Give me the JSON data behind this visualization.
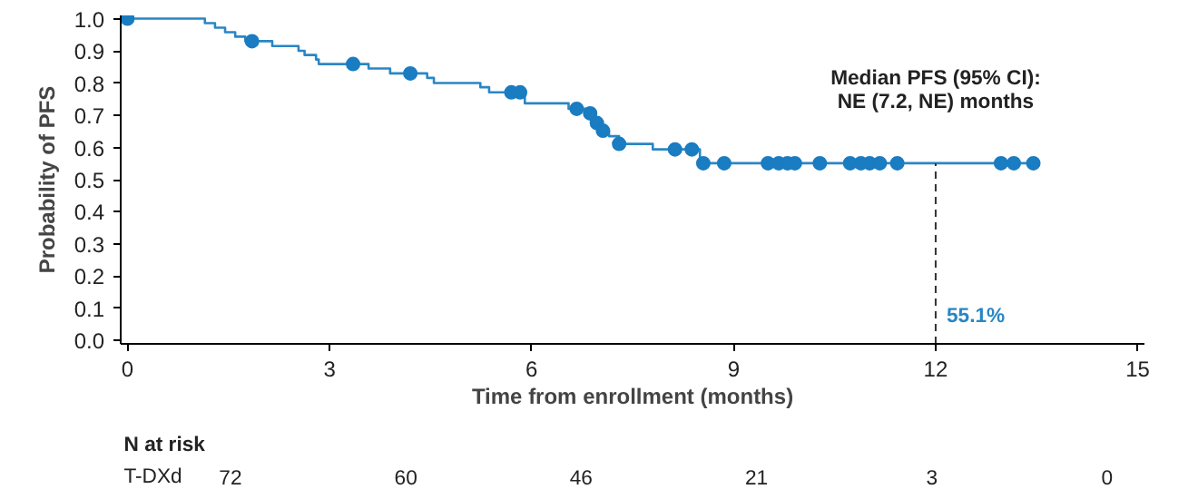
{
  "chart_data": {
    "type": "step",
    "xlabel": "Time from enrollment (months)",
    "ylabel": "Probability of PFS",
    "xlim": [
      -0.1,
      15.1
    ],
    "ylim": [
      -0.01,
      1.01
    ],
    "xticks": [
      0,
      3,
      6,
      9,
      12,
      15
    ],
    "yticks": [
      {
        "value": 0,
        "label": "0.0"
      },
      {
        "value": 0.1,
        "label": "0.1"
      },
      {
        "value": 0.2,
        "label": "0.2"
      },
      {
        "value": 0.3,
        "label": "0.3"
      },
      {
        "value": 0.4,
        "label": "0.4"
      },
      {
        "value": 0.5,
        "label": "0.5"
      },
      {
        "value": 0.6,
        "label": "0.6"
      },
      {
        "value": 0.7,
        "label": "0.7"
      },
      {
        "value": 0.8,
        "label": "0.8"
      },
      {
        "value": 0.9,
        "label": "0.9"
      },
      {
        "value": 1.0,
        "label": "1.0"
      }
    ],
    "grid": false,
    "line_style": "solid",
    "series": [
      {
        "color": "#2a86c4",
        "marker": "none",
        "x": [
          0,
          1.15,
          1.3,
          1.45,
          1.6,
          1.75,
          2.15,
          2.54,
          2.63,
          2.8,
          2.84,
          3.58,
          3.9,
          4.45,
          4.55,
          5.24,
          5.37,
          5.9,
          6.55,
          6.8,
          6.95,
          7.05,
          7.15,
          7.3,
          7.8,
          8.5,
          13.45
        ],
        "values": [
          1.0,
          0.986,
          0.972,
          0.958,
          0.944,
          0.93,
          0.915,
          0.9,
          0.887,
          0.873,
          0.859,
          0.845,
          0.83,
          0.816,
          0.8,
          0.787,
          0.771,
          0.737,
          0.72,
          0.706,
          0.676,
          0.652,
          0.635,
          0.611,
          0.594,
          0.551,
          0.551
        ]
      },
      {
        "type": "scatter",
        "color": "#1a7cc1",
        "marker": "circle",
        "x": [
          0,
          1.85,
          3.35,
          4.2,
          5.7,
          5.83,
          6.67,
          6.87,
          6.97,
          7.06,
          7.3,
          8.13,
          8.38,
          8.55,
          8.86,
          9.51,
          9.67,
          9.8,
          9.91,
          10.28,
          10.73,
          10.89,
          11.02,
          11.17,
          11.43,
          12.97,
          13.16,
          13.45
        ],
        "values": [
          1.0,
          0.93,
          0.859,
          0.83,
          0.771,
          0.771,
          0.72,
          0.706,
          0.676,
          0.652,
          0.611,
          0.594,
          0.594,
          0.551,
          0.551,
          0.551,
          0.551,
          0.551,
          0.551,
          0.551,
          0.551,
          0.551,
          0.551,
          0.551,
          0.551,
          0.551,
          0.551,
          0.551
        ]
      }
    ],
    "ref_lines": [
      {
        "axis": "x",
        "value": 12,
        "color": "#333333",
        "line_style": "dashed"
      }
    ],
    "annotations": [
      "Median PFS (95% CI):",
      "NE (7.2, NE) months",
      "N at risk",
      "T-DXd",
      "72",
      "60",
      "46",
      "21",
      "3",
      "0",
      "55.1%"
    ]
  }
}
